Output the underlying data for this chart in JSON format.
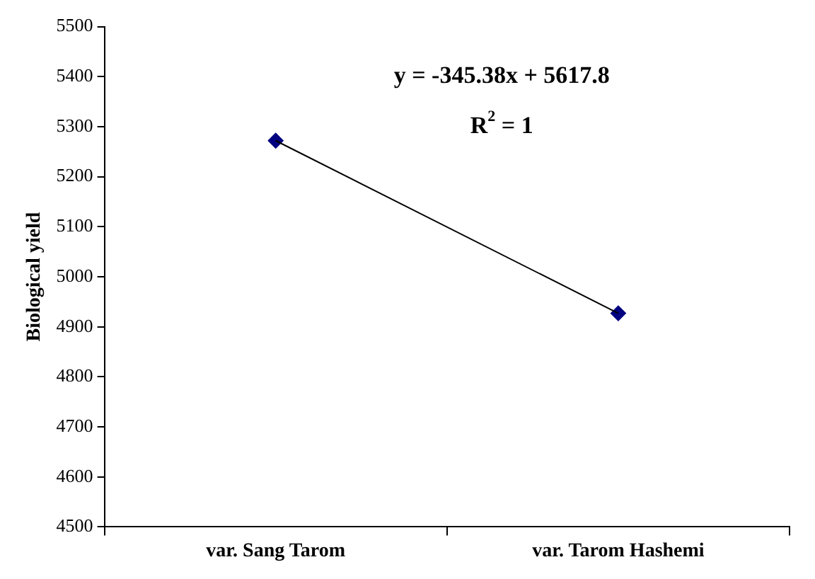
{
  "chart_data": {
    "type": "scatter",
    "ylabel": "Biological yield",
    "categories": [
      "var. Sang Tarom",
      "var. Tarom Hashemi"
    ],
    "series": [
      {
        "type": "line",
        "color": "#000000",
        "values": [
          5272,
          4927
        ],
        "marker": "none"
      },
      {
        "color": "#000080",
        "values": [
          5272,
          4927
        ],
        "marker": "diamond"
      }
    ],
    "ylim": [
      4500,
      5500
    ],
    "yticks": [
      4500,
      4600,
      4700,
      4800,
      4900,
      5000,
      5100,
      5200,
      5300,
      5400,
      5500
    ],
    "grid": false,
    "legend": false,
    "annotations": [
      "y = -345.38x + 5617.8",
      "R$^{2}$ = 1"
    ]
  }
}
